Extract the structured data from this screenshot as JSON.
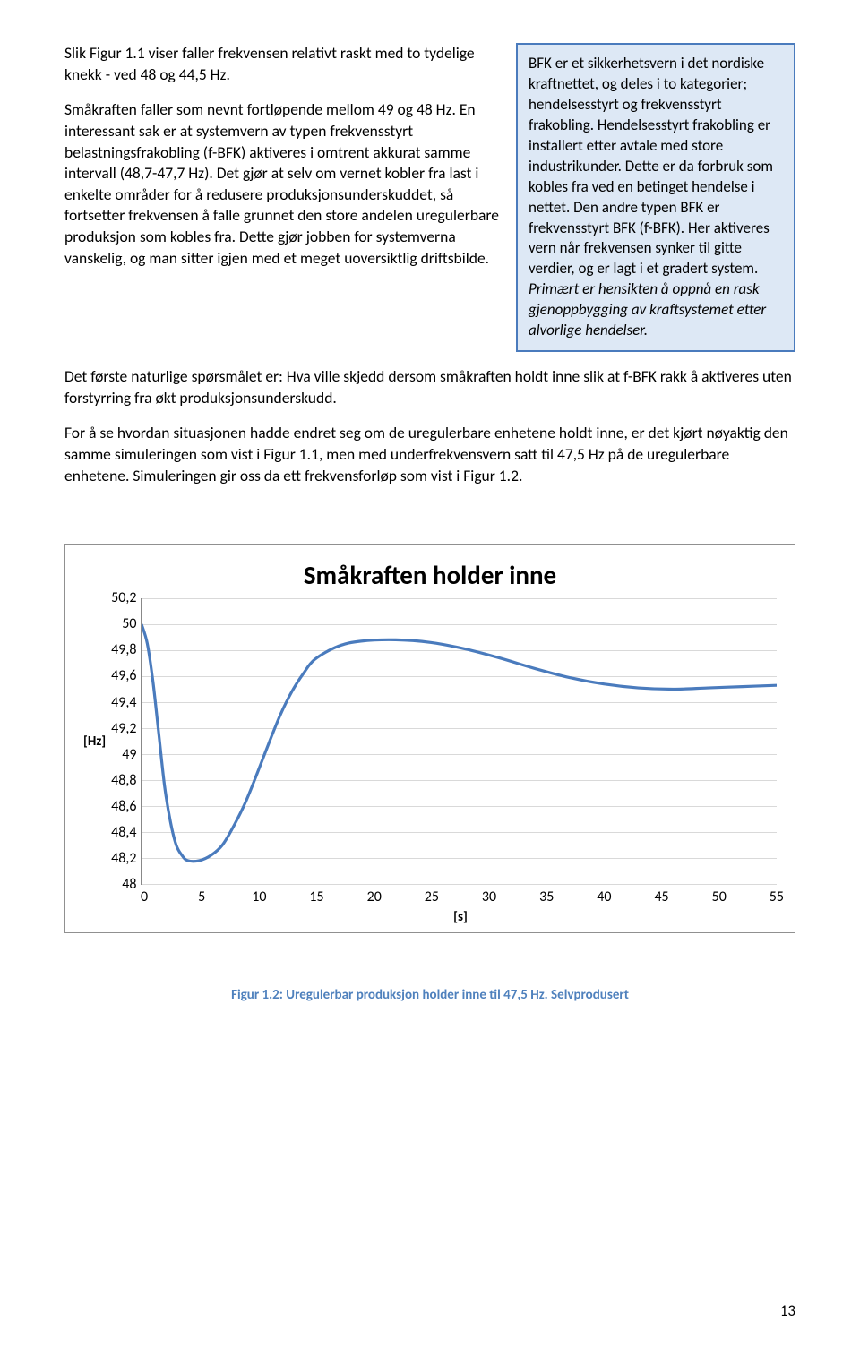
{
  "main_paragraphs": {
    "p1": "Slik Figur 1.1 viser faller frekvensen relativt raskt med to tydelige knekk - ved 48 og 44,5 Hz.",
    "p2": "Småkraften faller som nevnt fortløpende mellom 49 og 48 Hz. En interessant sak er at systemvern av typen frekvensstyrt belastningsfrakobling (f-BFK) aktiveres i omtrent akkurat samme intervall (48,7-47,7 Hz). Det gjør at selv om vernet kobler fra last i enkelte områder for å redusere produksjonsunderskuddet, så fortsetter frekvensen å falle grunnet den store andelen uregulerbare produksjon som kobles fra. Dette gjør jobben for systemverna vanskelig, og man sitter igjen med et meget uoversiktlig driftsbilde.",
    "p3": "Det første naturlige spørsmålet er: Hva ville skjedd dersom småkraften holdt inne slik at f-BFK rakk å aktiveres uten forstyrring fra økt produksjonsunderskudd.",
    "p4": "For å se hvordan situasjonen hadde endret seg om de uregulerbare enhetene holdt inne, er det kjørt nøyaktig den samme simuleringen som vist i Figur 1.1, men med underfrekvensvern satt til 47,5 Hz på de uregulerbare enhetene. Simuleringen gir oss da ett frekvensforløp som vist i Figur 1.2."
  },
  "sidebar": {
    "text_before_italic": "BFK er et sikkerhetsvern i det nordiske kraftnettet, og deles i to kategorier; hendelsesstyrt og frekvensstyrt frakobling. Hendelsesstyrt frakobling er installert etter avtale med store industrikunder. Dette er da forbruk som kobles fra ved en betinget hendelse i nettet. Den andre typen BFK er frekvensstyrt BFK (f-BFK). Her aktiveres vern når frekvensen synker til gitte verdier, og er lagt i et gradert system. ",
    "text_italic": "Primært er hensikten å oppnå en rask gjenoppbygging av kraftsystemet etter alvorlige hendelser."
  },
  "chart": {
    "title": "Småkraften holder inne",
    "y_axis_label": "[Hz]",
    "x_axis_label": "[s]",
    "y_ticks": [
      "50,2",
      "50",
      "49,8",
      "49,6",
      "49,4",
      "49,2",
      "49",
      "48,8",
      "48,6",
      "48,4",
      "48,2",
      "48"
    ],
    "x_ticks": [
      "0",
      "5",
      "10",
      "15",
      "20",
      "25",
      "30",
      "35",
      "40",
      "45",
      "50",
      "55"
    ],
    "ylim": [
      48,
      50.2
    ],
    "xlim": [
      0,
      55
    ],
    "line_color": "#4a7bbd",
    "line_width": 3.2,
    "grid_color": "#d9d9d9",
    "border_color": "#909090",
    "series": [
      [
        0,
        50.0
      ],
      [
        0.5,
        49.85
      ],
      [
        1.0,
        49.55
      ],
      [
        1.5,
        49.15
      ],
      [
        2.0,
        48.75
      ],
      [
        2.5,
        48.48
      ],
      [
        3.0,
        48.3
      ],
      [
        3.5,
        48.22
      ],
      [
        4.0,
        48.18
      ],
      [
        5.0,
        48.18
      ],
      [
        6.0,
        48.22
      ],
      [
        7.0,
        48.3
      ],
      [
        8.0,
        48.45
      ],
      [
        9.0,
        48.63
      ],
      [
        10.0,
        48.85
      ],
      [
        11.0,
        49.08
      ],
      [
        12.0,
        49.3
      ],
      [
        13.0,
        49.48
      ],
      [
        14.0,
        49.62
      ],
      [
        15.0,
        49.73
      ],
      [
        17.0,
        49.83
      ],
      [
        19.0,
        49.87
      ],
      [
        22.0,
        49.88
      ],
      [
        25.0,
        49.86
      ],
      [
        28.0,
        49.81
      ],
      [
        31.0,
        49.74
      ],
      [
        34.0,
        49.66
      ],
      [
        37.0,
        49.59
      ],
      [
        40.0,
        49.54
      ],
      [
        43.0,
        49.51
      ],
      [
        46.0,
        49.5
      ],
      [
        49.0,
        49.51
      ],
      [
        52.0,
        49.52
      ],
      [
        55.0,
        49.53
      ]
    ]
  },
  "caption": "Figur 1.2: Uregulerbar produksjon holder inne til 47,5 Hz. Selvprodusert",
  "page_number": "13"
}
